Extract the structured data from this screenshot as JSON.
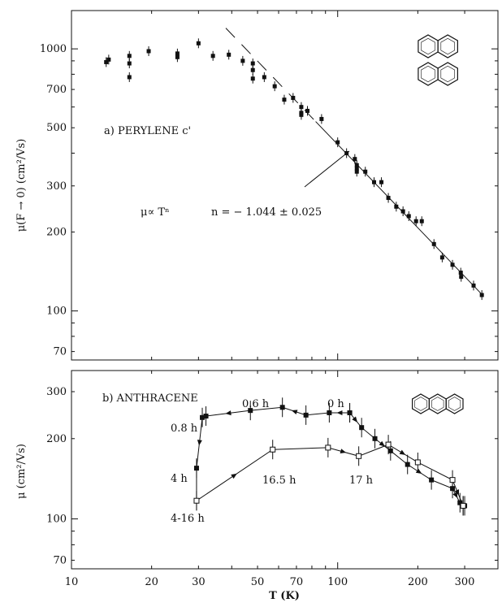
{
  "chart_data": [
    {
      "type": "scatter",
      "panel": "a",
      "x_scale": "log",
      "y_scale": "log",
      "xlim": [
        10,
        400
      ],
      "ylim": [
        65,
        1400
      ],
      "y_ticks": [
        1000,
        700,
        500,
        300,
        200,
        100,
        70
      ],
      "ylabel": "μ(F → 0)  (cm²/Vs)",
      "annotations": {
        "panel_label": "a) PERYLENE c'",
        "law": "μ∝ Tⁿ",
        "exponent": "n = − 1.044 ± 0.025"
      },
      "fit_line": {
        "x": [
          38,
          350
        ],
        "y": [
          1200,
          115
        ]
      },
      "series": [
        {
          "marker": "filled-square",
          "points": [
            [
              13.5,
              890
            ],
            [
              13.8,
              910
            ],
            [
              16.5,
              940
            ],
            [
              16.5,
              880
            ],
            [
              16.5,
              780
            ],
            [
              19.5,
              980
            ],
            [
              25,
              960
            ],
            [
              25,
              930
            ],
            [
              30,
              1050
            ],
            [
              34,
              940
            ],
            [
              39,
              950
            ],
            [
              44,
              900
            ],
            [
              48,
              880
            ],
            [
              48,
              830
            ],
            [
              48,
              770
            ],
            [
              53,
              780
            ],
            [
              58,
              720
            ],
            [
              63,
              640
            ],
            [
              68,
              650
            ],
            [
              73,
              600
            ],
            [
              73,
              570
            ],
            [
              73,
              560
            ],
            [
              77,
              580
            ],
            [
              87,
              540
            ],
            [
              100,
              440
            ],
            [
              108,
              400
            ],
            [
              116,
              380
            ],
            [
              118,
              360
            ],
            [
              118,
              350
            ],
            [
              118,
              340
            ],
            [
              127,
              340
            ],
            [
              137,
              310
            ],
            [
              146,
              310
            ],
            [
              155,
              270
            ],
            [
              166,
              250
            ],
            [
              176,
              240
            ],
            [
              185,
              230
            ],
            [
              197,
              220
            ],
            [
              207,
              220
            ],
            [
              230,
              180
            ],
            [
              247,
              160
            ],
            [
              270,
              150
            ],
            [
              290,
              140
            ],
            [
              291,
              135
            ],
            [
              324,
              125
            ],
            [
              348,
              115
            ]
          ]
        }
      ]
    },
    {
      "type": "line",
      "panel": "b",
      "x_scale": "log",
      "y_scale": "log",
      "xlim": [
        10,
        400
      ],
      "ylim": [
        65,
        360
      ],
      "y_ticks": [
        300,
        200,
        100,
        70
      ],
      "x_ticks": [
        10,
        20,
        30,
        50,
        70,
        100,
        200,
        300
      ],
      "xlabel": "T (K)",
      "ylabel": "μ  (cm²/Vs)",
      "annotations": {
        "panel_label": "b) ANTHRACENE",
        "time_labels": [
          "0.8 h",
          "0.6 h",
          "0 h",
          "4 h",
          "16.5 h",
          "17 h",
          "4-16 h"
        ]
      },
      "series": [
        {
          "marker": "filled-square",
          "points": [
            [
              111,
              250
            ],
            [
              123,
              220
            ],
            [
              138,
              200
            ],
            [
              158,
              180
            ],
            [
              183,
              160
            ],
            [
              225,
              140
            ],
            [
              270,
              130
            ],
            [
              288,
              115
            ],
            [
              296,
              112
            ],
            [
              300,
              112
            ]
          ]
        },
        {
          "marker": "filled-square",
          "points": [
            [
              111,
              250
            ],
            [
              93,
              250
            ],
            [
              76,
              245
            ],
            [
              62,
              262
            ],
            [
              47,
              255
            ],
            [
              32,
              243
            ],
            [
              31,
              240
            ],
            [
              29.5,
              155
            ],
            [
              29.5,
              117
            ]
          ]
        },
        {
          "marker": "open-square",
          "points": [
            [
              29.5,
              117
            ],
            [
              57,
              182
            ],
            [
              92,
              185
            ],
            [
              120,
              172
            ],
            [
              155,
              190
            ],
            [
              200,
              163
            ],
            [
              270,
              140
            ],
            [
              296,
              112
            ]
          ]
        }
      ]
    }
  ]
}
